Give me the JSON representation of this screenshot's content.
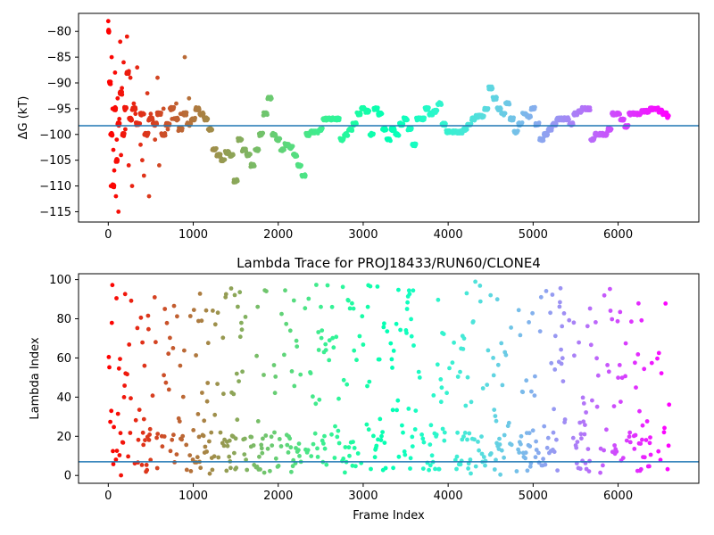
{
  "chart_data": [
    {
      "type": "scatter",
      "panel": "top",
      "title": "",
      "xlabel": "",
      "ylabel": "ΔG (kT)",
      "xlim": [
        -350,
        6950
      ],
      "ylim": [
        -117,
        -76.5
      ],
      "xticks": [
        0,
        1000,
        2000,
        3000,
        4000,
        5000,
        6000
      ],
      "yticks": [
        -115,
        -110,
        -105,
        -100,
        -95,
        -90,
        -85,
        -80
      ],
      "ytick_labels": [
        "−115",
        "−110",
        "−105",
        "−100",
        "−95",
        "−90",
        "−85",
        "−80"
      ],
      "hline": -98.3,
      "hline_color": "#1f77b4",
      "colormap": "rainbow (red at frame 0 → violet at last frame)",
      "x_max_frame": 6600,
      "trace_points": [
        [
          0,
          -80
        ],
        [
          20,
          -90
        ],
        [
          40,
          -100
        ],
        [
          60,
          -110
        ],
        [
          80,
          -95
        ],
        [
          100,
          -105
        ],
        [
          120,
          -98
        ],
        [
          150,
          -92
        ],
        [
          180,
          -100
        ],
        [
          200,
          -95
        ],
        [
          230,
          -88
        ],
        [
          260,
          -97
        ],
        [
          300,
          -95
        ],
        [
          350,
          -98
        ],
        [
          400,
          -96
        ],
        [
          450,
          -100
        ],
        [
          500,
          -97
        ],
        [
          550,
          -98
        ],
        [
          600,
          -96
        ],
        [
          650,
          -100
        ],
        [
          700,
          -98
        ],
        [
          750,
          -95
        ],
        [
          800,
          -97
        ],
        [
          850,
          -99
        ],
        [
          900,
          -96
        ],
        [
          950,
          -98
        ],
        [
          1000,
          -97
        ],
        [
          1050,
          -95
        ],
        [
          1100,
          -96
        ],
        [
          1150,
          -97
        ],
        [
          1200,
          -99
        ],
        [
          1250,
          -103
        ],
        [
          1300,
          -104
        ],
        [
          1350,
          -105
        ],
        [
          1400,
          -103.5
        ],
        [
          1450,
          -104
        ],
        [
          1500,
          -109
        ],
        [
          1550,
          -101
        ],
        [
          1600,
          -103
        ],
        [
          1650,
          -104
        ],
        [
          1700,
          -106
        ],
        [
          1750,
          -103
        ],
        [
          1800,
          -100
        ],
        [
          1850,
          -96
        ],
        [
          1900,
          -93
        ],
        [
          1950,
          -100
        ],
        [
          2000,
          -101
        ],
        [
          2050,
          -103
        ],
        [
          2100,
          -102
        ],
        [
          2150,
          -102.5
        ],
        [
          2200,
          -104
        ],
        [
          2250,
          -106
        ],
        [
          2300,
          -108
        ],
        [
          2350,
          -100
        ],
        [
          2400,
          -99.5
        ],
        [
          2450,
          -99.5
        ],
        [
          2500,
          -99
        ],
        [
          2550,
          -97
        ],
        [
          2600,
          -97
        ],
        [
          2650,
          -97
        ],
        [
          2700,
          -97
        ],
        [
          2750,
          -101
        ],
        [
          2800,
          -100
        ],
        [
          2850,
          -99
        ],
        [
          2900,
          -98
        ],
        [
          2950,
          -96
        ],
        [
          3000,
          -95
        ],
        [
          3050,
          -95.5
        ],
        [
          3100,
          -100
        ],
        [
          3150,
          -95
        ],
        [
          3200,
          -96
        ],
        [
          3250,
          -99
        ],
        [
          3300,
          -101
        ],
        [
          3350,
          -99
        ],
        [
          3400,
          -100
        ],
        [
          3450,
          -98
        ],
        [
          3500,
          -97
        ],
        [
          3550,
          -99
        ],
        [
          3600,
          -102
        ],
        [
          3650,
          -97
        ],
        [
          3700,
          -97
        ],
        [
          3750,
          -95
        ],
        [
          3800,
          -96
        ],
        [
          3850,
          -95.5
        ],
        [
          3900,
          -94
        ],
        [
          3950,
          -98
        ],
        [
          4000,
          -99.5
        ],
        [
          4050,
          -99.5
        ],
        [
          4100,
          -99.5
        ],
        [
          4150,
          -99.5
        ],
        [
          4200,
          -99
        ],
        [
          4250,
          -98
        ],
        [
          4300,
          -97
        ],
        [
          4350,
          -96.5
        ],
        [
          4400,
          -96.5
        ],
        [
          4450,
          -95
        ],
        [
          4500,
          -91
        ],
        [
          4550,
          -93
        ],
        [
          4600,
          -95
        ],
        [
          4650,
          -96
        ],
        [
          4700,
          -94
        ],
        [
          4750,
          -97
        ],
        [
          4800,
          -99.5
        ],
        [
          4850,
          -98
        ],
        [
          4900,
          -96
        ],
        [
          4950,
          -96.5
        ],
        [
          5000,
          -95
        ],
        [
          5050,
          -98
        ],
        [
          5100,
          -101
        ],
        [
          5150,
          -100
        ],
        [
          5200,
          -99
        ],
        [
          5250,
          -98
        ],
        [
          5300,
          -97
        ],
        [
          5350,
          -97
        ],
        [
          5400,
          -97
        ],
        [
          5450,
          -98
        ],
        [
          5500,
          -96
        ],
        [
          5550,
          -95.5
        ],
        [
          5600,
          -95
        ],
        [
          5650,
          -95
        ],
        [
          5700,
          -101
        ],
        [
          5750,
          -100
        ],
        [
          5800,
          -100
        ],
        [
          5850,
          -100
        ],
        [
          5900,
          -99
        ],
        [
          5950,
          -96
        ],
        [
          6000,
          -96
        ],
        [
          6050,
          -97
        ],
        [
          6100,
          -98.5
        ],
        [
          6150,
          -96
        ],
        [
          6200,
          -96
        ],
        [
          6250,
          -96
        ],
        [
          6300,
          -95.5
        ],
        [
          6350,
          -95.5
        ],
        [
          6400,
          -95
        ],
        [
          6450,
          -95
        ],
        [
          6500,
          -95.5
        ],
        [
          6550,
          -96
        ],
        [
          6600,
          -96.5
        ]
      ],
      "early_outliers": [
        [
          0,
          -78
        ],
        [
          10,
          -80
        ],
        [
          15,
          -90
        ],
        [
          25,
          -100
        ],
        [
          30,
          -110
        ],
        [
          40,
          -85
        ],
        [
          50,
          -95
        ],
        [
          60,
          -103
        ],
        [
          70,
          -107
        ],
        [
          80,
          -88
        ],
        [
          90,
          -112
        ],
        [
          100,
          -101
        ],
        [
          110,
          -93
        ],
        [
          120,
          -115
        ],
        [
          130,
          -97
        ],
        [
          140,
          -82
        ],
        [
          150,
          -104
        ],
        [
          160,
          -91
        ],
        [
          180,
          -86
        ],
        [
          200,
          -99
        ],
        [
          220,
          -81
        ],
        [
          240,
          -106
        ],
        [
          260,
          -89
        ],
        [
          280,
          -110
        ],
        [
          300,
          -94
        ],
        [
          320,
          -96
        ],
        [
          340,
          -87
        ],
        [
          360,
          -98
        ],
        [
          380,
          -102
        ],
        [
          400,
          -105
        ],
        [
          420,
          -108
        ],
        [
          440,
          -100
        ],
        [
          460,
          -92
        ],
        [
          480,
          -112
        ],
        [
          500,
          -96
        ],
        [
          550,
          -101
        ],
        [
          580,
          -89
        ],
        [
          600,
          -106
        ],
        [
          650,
          -95
        ],
        [
          700,
          -99
        ],
        [
          750,
          -97
        ],
        [
          800,
          -94
        ],
        [
          850,
          -96
        ],
        [
          900,
          -85
        ],
        [
          950,
          -93
        ]
      ]
    },
    {
      "type": "scatter",
      "panel": "bottom",
      "title": "Lambda Trace for PROJ18433/RUN60/CLONE4",
      "xlabel": "Frame Index",
      "ylabel": "Lambda Index",
      "xlim": [
        -350,
        6950
      ],
      "ylim": [
        -4,
        103
      ],
      "xticks": [
        0,
        1000,
        2000,
        3000,
        4000,
        5000,
        6000
      ],
      "yticks": [
        0,
        20,
        40,
        60,
        80,
        100
      ],
      "hline": 7,
      "hline_color": "#1f77b4",
      "colormap": "rainbow (red at frame 0 → violet at last frame)",
      "x_max_frame": 6600,
      "lambda_range": [
        0,
        99
      ]
    }
  ]
}
